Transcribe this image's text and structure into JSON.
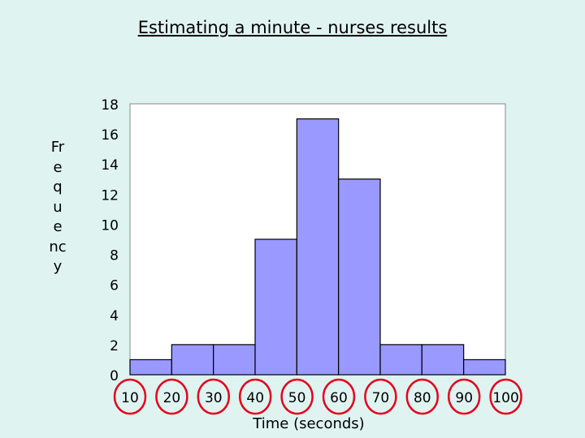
{
  "chart_data": {
    "type": "bar",
    "title": "Estimating a minute - nurses results",
    "xlabel": "Time (seconds)",
    "ylabel": "Frequency",
    "bins": [
      [
        10,
        20
      ],
      [
        20,
        30
      ],
      [
        30,
        40
      ],
      [
        40,
        50
      ],
      [
        50,
        60
      ],
      [
        60,
        70
      ],
      [
        70,
        80
      ],
      [
        80,
        90
      ],
      [
        90,
        100
      ]
    ],
    "values": [
      1,
      2,
      2,
      9,
      17,
      13,
      2,
      2,
      1
    ],
    "x_tick_labels": [
      "10",
      "20",
      "30",
      "40",
      "50",
      "60",
      "70",
      "80",
      "90",
      "100"
    ],
    "y_tick_labels": [
      "0",
      "2",
      "4",
      "6",
      "8",
      "10",
      "12",
      "14",
      "16",
      "18"
    ],
    "ylim": [
      0,
      18
    ],
    "xlim": [
      10,
      100
    ],
    "grid": false,
    "highlight": "x tick labels circled in red",
    "colors": {
      "bar_fill": "#9999ff",
      "bar_stroke": "#000000",
      "plot_bg": "#ffffff",
      "circle": "#e8001c",
      "background": "#dff4f0"
    }
  }
}
